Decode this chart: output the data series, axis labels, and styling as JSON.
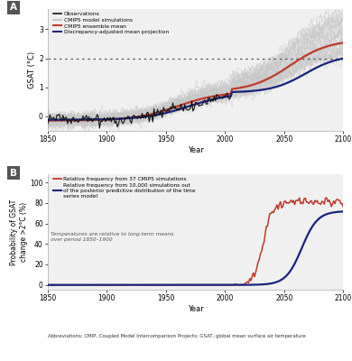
{
  "xlim": [
    1850,
    2100
  ],
  "panel_A": {
    "ylabel": "GSAT (°C)",
    "ylim": [
      -0.5,
      3.7
    ],
    "yticks": [
      0,
      1,
      2,
      3
    ],
    "dashed_line_y": 2.0,
    "obs_color": "#111111",
    "ensemble_color": "#bbbbbb",
    "cmip_mean_color": "#c0392b",
    "adjusted_color": "#1a237e",
    "legend_labels": [
      "Observations",
      "CMIP5 model simulations",
      "CMIP5 ensemble mean",
      "Discrepancy-adjusted mean projection"
    ]
  },
  "panel_B": {
    "ylabel": "Probability of GSAT\nchange >2°C (%)",
    "ylim": [
      -5,
      108
    ],
    "yticks": [
      0,
      20,
      40,
      60,
      80,
      100
    ],
    "cmip_freq_color": "#c0392b",
    "posterior_freq_color": "#1a237e",
    "note_text": "Temperatures are relative to long-term means\nover period 1850–1900",
    "legend_labels": [
      "Relative frequency from 37 CMIP5 simulations",
      "Relative frequency from 10,000 simulations out\nof the posterior predictive distribution of the time\nseries model"
    ]
  },
  "xlabel": "Year",
  "xticks": [
    1850,
    1900,
    1950,
    2000,
    2050,
    2100
  ],
  "bg_color": "#ffffff",
  "panel_bg": "#f0f0f0",
  "abbrev_text": "Abbreviations: CMIP, Coupled Model Intercomparison Projects; GSAT, global mean surface air temperature"
}
